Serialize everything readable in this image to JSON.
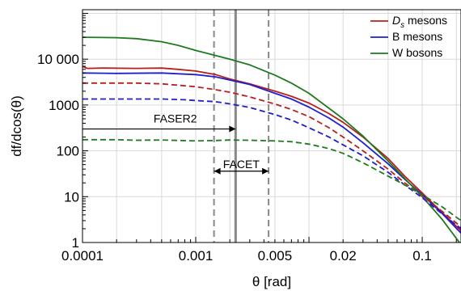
{
  "chart_data": {
    "type": "line",
    "xlabel": "θ [rad]",
    "ylabel": "df/dcos(θ)",
    "xscale": "log",
    "yscale": "log",
    "xlim": [
      0.0001,
      0.22
    ],
    "ylim": [
      1,
      120000
    ],
    "grid": true,
    "legend_position": "top-right",
    "x_tick_labels": [
      {
        "value": 0.0001,
        "label": "0.0001"
      },
      {
        "value": 0.001,
        "label": "0.001"
      },
      {
        "value": 0.005,
        "label": "0.005"
      },
      {
        "value": 0.02,
        "label": "0.02"
      },
      {
        "value": 0.1,
        "label": "0.1"
      }
    ],
    "y_tick_labels": [
      {
        "value": 1,
        "label": "1"
      },
      {
        "value": 10,
        "label": "10"
      },
      {
        "value": 100,
        "label": "100"
      },
      {
        "value": 1000,
        "label": "1000"
      },
      {
        "value": 10000,
        "label": "10 000"
      }
    ],
    "series": [
      {
        "name": "D_s mesons",
        "legend_main": "D",
        "legend_sub": "s",
        "legend_rest": " mesons",
        "color": "#b81f1f",
        "dash": false,
        "points": [
          [
            0.0001,
            7000
          ],
          [
            0.00011,
            6300
          ],
          [
            0.00015,
            6400
          ],
          [
            0.0003,
            6300
          ],
          [
            0.0005,
            6400
          ],
          [
            0.0007,
            6000
          ],
          [
            0.001,
            5500
          ],
          [
            0.0015,
            4600
          ],
          [
            0.002,
            3700
          ],
          [
            0.003,
            2900
          ],
          [
            0.005,
            2000
          ],
          [
            0.007,
            1550
          ],
          [
            0.01,
            1100
          ],
          [
            0.015,
            650
          ],
          [
            0.02,
            420
          ],
          [
            0.03,
            200
          ],
          [
            0.05,
            68
          ],
          [
            0.07,
            28
          ],
          [
            0.1,
            12
          ],
          [
            0.15,
            4.5
          ],
          [
            0.22,
            1.8
          ]
        ]
      },
      {
        "name": "B mesons",
        "legend_main": "B mesons",
        "legend_sub": "",
        "legend_rest": "",
        "color": "#1f1fcc",
        "dash": false,
        "points": [
          [
            0.0001,
            5000
          ],
          [
            0.0002,
            4900
          ],
          [
            0.0005,
            5000
          ],
          [
            0.001,
            4600
          ],
          [
            0.0015,
            4100
          ],
          [
            0.002,
            3500
          ],
          [
            0.003,
            2800
          ],
          [
            0.005,
            1800
          ],
          [
            0.007,
            1350
          ],
          [
            0.01,
            900
          ],
          [
            0.015,
            520
          ],
          [
            0.02,
            330
          ],
          [
            0.03,
            150
          ],
          [
            0.05,
            52
          ],
          [
            0.07,
            24
          ],
          [
            0.1,
            11
          ],
          [
            0.15,
            4.3
          ],
          [
            0.22,
            1.6
          ]
        ]
      },
      {
        "name": "W bosons",
        "legend_main": "W bosons",
        "legend_sub": "",
        "legend_rest": "",
        "color": "#1f7a1f",
        "dash": false,
        "points": [
          [
            0.0001,
            30000
          ],
          [
            0.0002,
            29500
          ],
          [
            0.0003,
            28000
          ],
          [
            0.0005,
            24000
          ],
          [
            0.0007,
            20000
          ],
          [
            0.001,
            15500
          ],
          [
            0.0015,
            12000
          ],
          [
            0.002,
            10000
          ],
          [
            0.003,
            7500
          ],
          [
            0.005,
            4500
          ],
          [
            0.007,
            3000
          ],
          [
            0.01,
            1800
          ],
          [
            0.015,
            850
          ],
          [
            0.02,
            500
          ],
          [
            0.03,
            210
          ],
          [
            0.05,
            60
          ],
          [
            0.07,
            25
          ],
          [
            0.1,
            10
          ],
          [
            0.15,
            3.2
          ],
          [
            0.22,
            0.9
          ]
        ]
      },
      {
        "name": "D_s mesons (dashed)",
        "color": "#b81f1f",
        "dash": true,
        "points": [
          [
            0.0001,
            3000
          ],
          [
            0.0003,
            3000
          ],
          [
            0.0005,
            2900
          ],
          [
            0.001,
            2500
          ],
          [
            0.0015,
            2150
          ],
          [
            0.002,
            1900
          ],
          [
            0.003,
            1500
          ],
          [
            0.005,
            1050
          ],
          [
            0.007,
            800
          ],
          [
            0.01,
            560
          ],
          [
            0.015,
            320
          ],
          [
            0.02,
            200
          ],
          [
            0.03,
            100
          ],
          [
            0.05,
            40
          ],
          [
            0.07,
            20
          ],
          [
            0.1,
            10.5
          ],
          [
            0.15,
            4.8
          ],
          [
            0.22,
            2.2
          ]
        ]
      },
      {
        "name": "B mesons (dashed)",
        "color": "#1f1fcc",
        "dash": true,
        "points": [
          [
            0.0001,
            1350
          ],
          [
            0.0003,
            1350
          ],
          [
            0.0005,
            1350
          ],
          [
            0.0008,
            1300
          ],
          [
            0.001,
            1250
          ],
          [
            0.0015,
            1180
          ],
          [
            0.002,
            1060
          ],
          [
            0.003,
            880
          ],
          [
            0.005,
            620
          ],
          [
            0.007,
            470
          ],
          [
            0.01,
            320
          ],
          [
            0.015,
            200
          ],
          [
            0.02,
            135
          ],
          [
            0.03,
            78
          ],
          [
            0.05,
            34
          ],
          [
            0.07,
            18
          ],
          [
            0.1,
            9.5
          ],
          [
            0.15,
            4.2
          ],
          [
            0.22,
            2
          ]
        ]
      },
      {
        "name": "W bosons (dashed)",
        "color": "#1f7a1f",
        "dash": true,
        "points": [
          [
            0.0001,
            175
          ],
          [
            0.0002,
            175
          ],
          [
            0.0003,
            170
          ],
          [
            0.0005,
            172
          ],
          [
            0.001,
            165
          ],
          [
            0.0015,
            168
          ],
          [
            0.002,
            172
          ],
          [
            0.003,
            170
          ],
          [
            0.005,
            165
          ],
          [
            0.007,
            158
          ],
          [
            0.01,
            140
          ],
          [
            0.015,
            112
          ],
          [
            0.02,
            88
          ],
          [
            0.03,
            55
          ],
          [
            0.05,
            28
          ],
          [
            0.07,
            18
          ],
          [
            0.1,
            11
          ],
          [
            0.15,
            6
          ],
          [
            0.22,
            3
          ]
        ]
      }
    ],
    "vertical_lines": [
      {
        "x": 0.00145,
        "style": "dashed",
        "color": "#888888"
      },
      {
        "x": 0.00225,
        "style": "solid",
        "color": "#888888"
      },
      {
        "x": 0.0044,
        "style": "dashed",
        "color": "#888888"
      }
    ],
    "annotations": [
      {
        "text": "FASER2",
        "arrow_from": 0.0001,
        "arrow_to": 0.00225,
        "y": 300
      },
      {
        "text": "FACET",
        "arrow_from": 0.00145,
        "arrow_to": 0.0044,
        "y": 36
      }
    ]
  }
}
